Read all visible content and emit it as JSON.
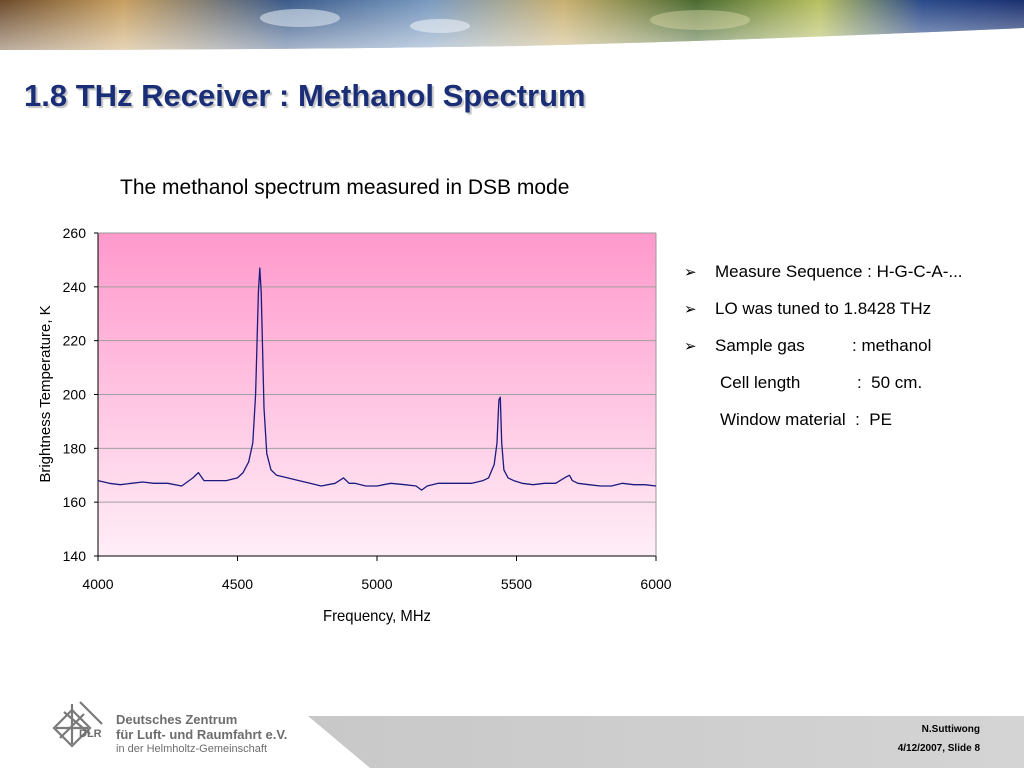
{
  "slide": {
    "title": "1.8 THz Receiver : Methanol Spectrum",
    "chart_caption": "The methanol spectrum measured in DSB mode"
  },
  "bullets": [
    {
      "text": "Measure Sequence : H-G-C-A-...",
      "marker": "arrow"
    },
    {
      "text": "LO was tuned to 1.8428 THz",
      "marker": "arrow"
    },
    {
      "text": "Sample gas          : methanol",
      "marker": "arrow"
    },
    {
      "text": "Cell length            :  50 cm.",
      "marker": "none"
    },
    {
      "text": "Window material  :  PE",
      "marker": "none"
    }
  ],
  "footer": {
    "org_line1": "Deutsches Zentrum",
    "org_line2": "für Luft- und Raumfahrt e.V.",
    "org_line3": "in der Helmholtz-Gemeinschaft",
    "org_short": "DLR",
    "author": "N.Suttiwong",
    "date_slide": "4/12/2007, Slide 8"
  },
  "colors": {
    "title": "#1a2e78",
    "plot_bg_top": "#ff99cc",
    "plot_bg_bottom": "#ffeef7",
    "series": "#1a1a80"
  },
  "chart_data": {
    "type": "line",
    "title": "The methanol spectrum measured in DSB mode",
    "xlabel": "Frequency, MHz",
    "ylabel": "Brightness Temperature, K",
    "xlim": [
      4000,
      6000
    ],
    "ylim": [
      140,
      260
    ],
    "xticks": [
      "4000",
      "4500",
      "5000",
      "5500",
      "6000"
    ],
    "yticks": [
      "140",
      "160",
      "180",
      "200",
      "220",
      "240",
      "260"
    ],
    "grid": true,
    "series": [
      {
        "x": [
          4000,
          4040,
          4080,
          4120,
          4160,
          4200,
          4250,
          4300,
          4340,
          4360,
          4380,
          4420,
          4460,
          4500,
          4520,
          4540,
          4555,
          4565,
          4575,
          4580,
          4585,
          4595,
          4605,
          4620,
          4640,
          4680,
          4720,
          4760,
          4800,
          4850,
          4880,
          4900,
          4920,
          4960,
          5000,
          5050,
          5100,
          5140,
          5160,
          5180,
          5220,
          5260,
          5300,
          5340,
          5380,
          5400,
          5420,
          5430,
          5437,
          5442,
          5447,
          5455,
          5470,
          5490,
          5520,
          5560,
          5600,
          5640,
          5680,
          5690,
          5700,
          5720,
          5760,
          5800,
          5840,
          5880,
          5920,
          5960,
          6000
        ],
        "y": [
          168,
          167,
          166.5,
          167,
          167.5,
          167,
          167,
          166,
          169,
          171,
          168,
          168,
          168,
          169,
          171,
          175,
          182,
          200,
          238,
          247,
          238,
          195,
          178,
          172,
          170,
          169,
          168,
          167,
          166,
          167,
          169,
          167,
          167,
          166,
          166,
          167,
          166.5,
          166,
          164.5,
          166,
          167,
          167,
          167,
          167,
          168,
          169,
          174,
          182,
          198,
          199,
          182,
          172,
          169,
          168,
          167,
          166.5,
          167,
          167,
          169.5,
          170,
          168,
          167,
          166.5,
          166,
          166,
          167,
          166.5,
          166.5,
          166
        ]
      }
    ]
  }
}
